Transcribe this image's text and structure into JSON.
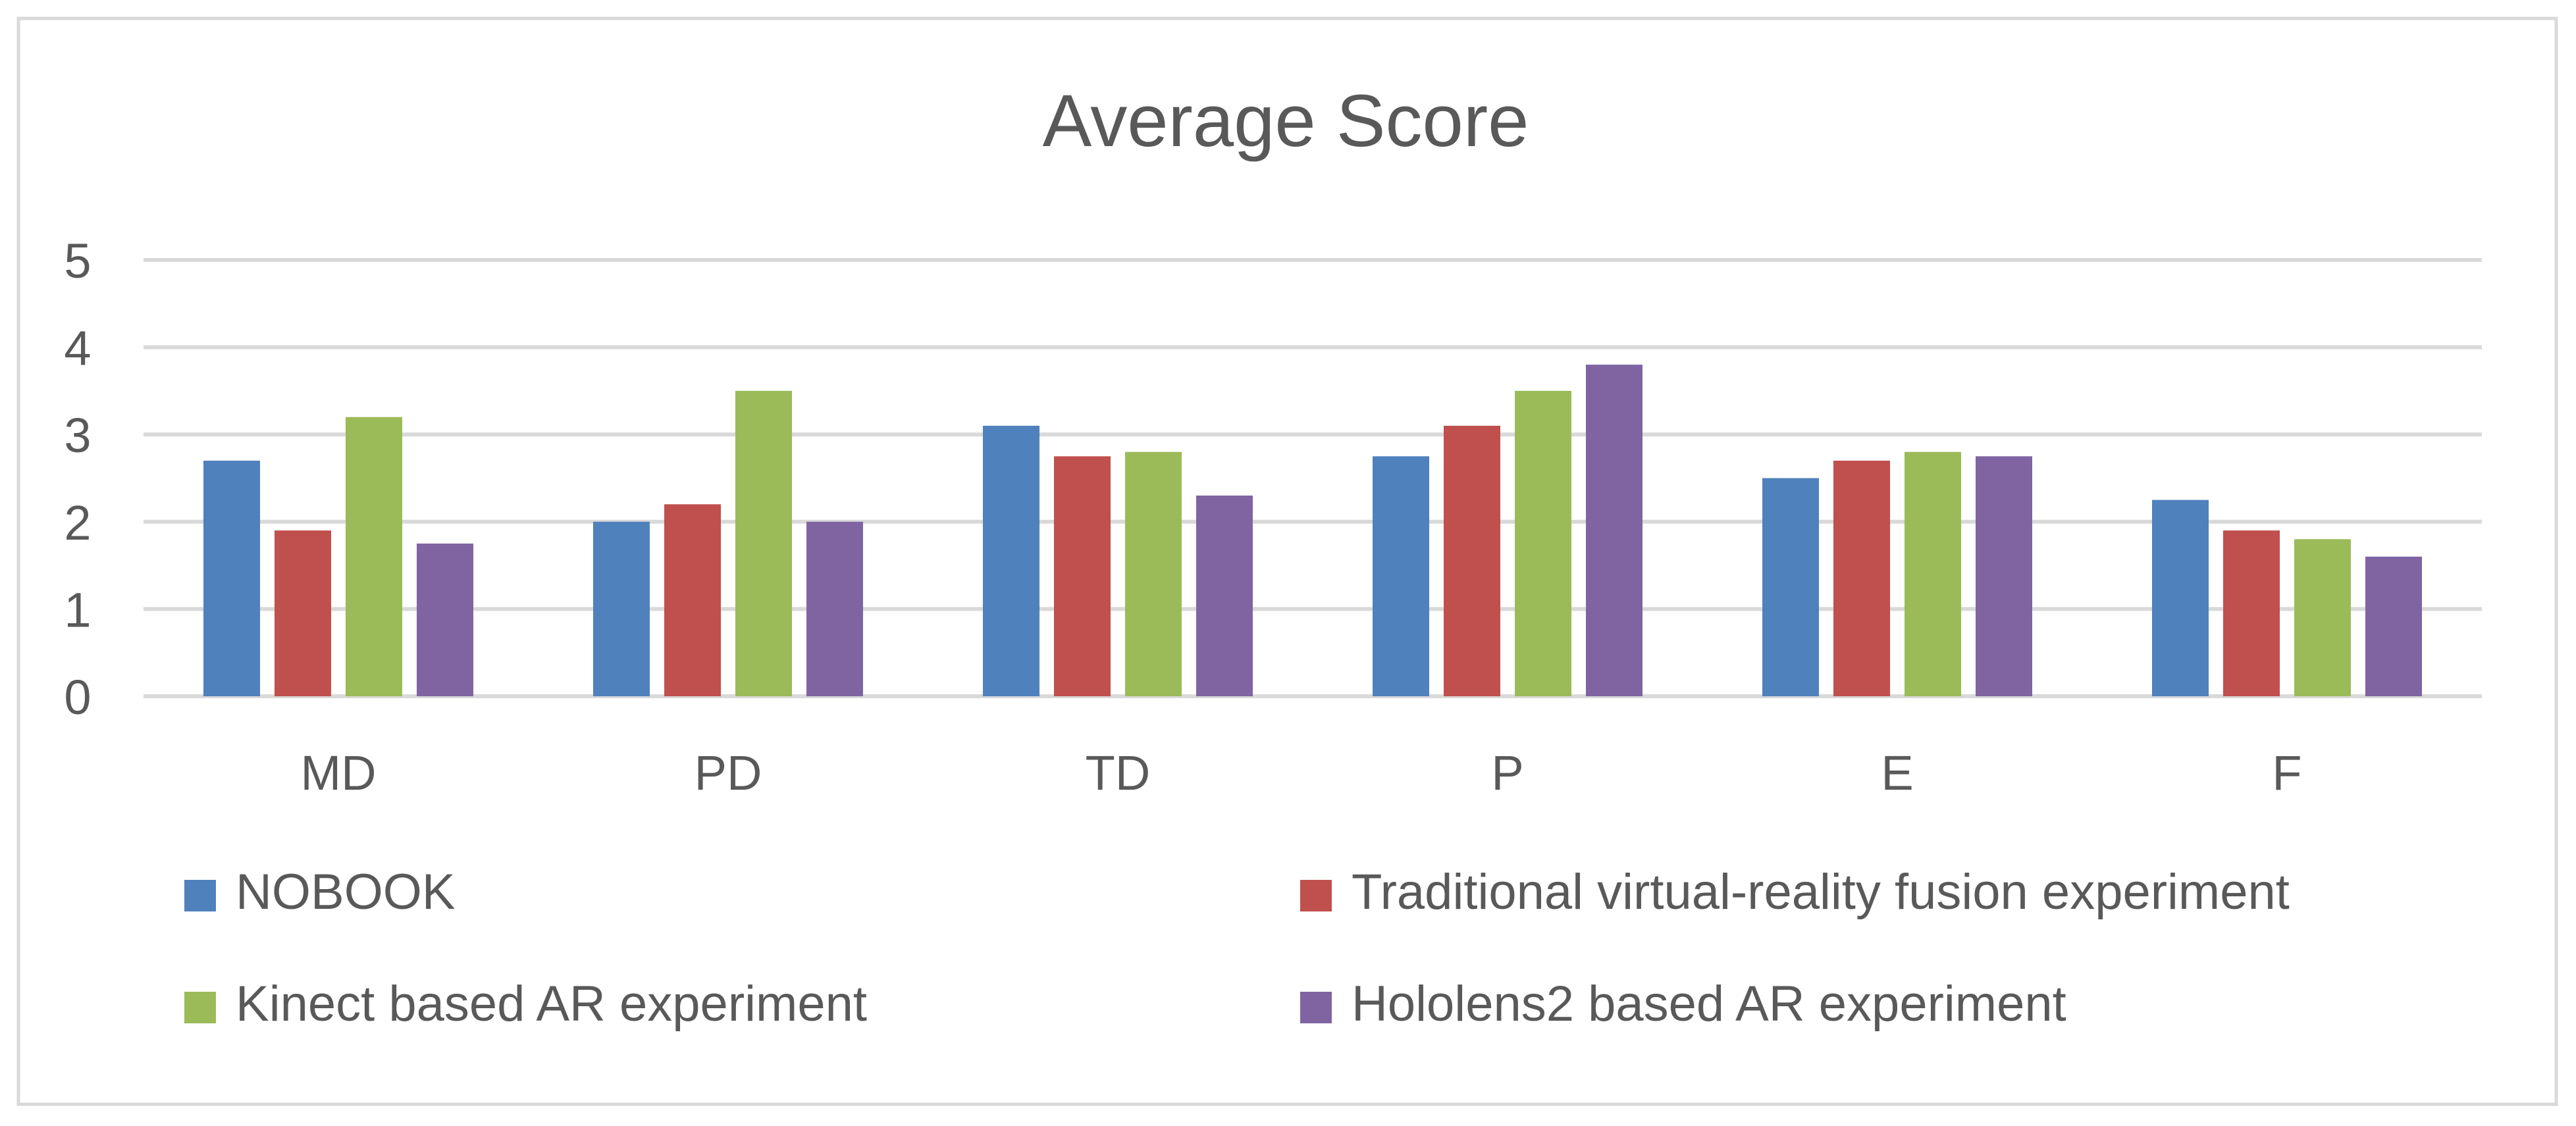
{
  "chart_data": {
    "type": "bar",
    "title": "Average Score",
    "xlabel": "",
    "ylabel": "",
    "ylim": [
      0,
      5
    ],
    "yticks": [
      0,
      1,
      2,
      3,
      4,
      5
    ],
    "grid": true,
    "legend_position": "bottom",
    "categories": [
      "MD",
      "PD",
      "TD",
      "P",
      "E",
      "F"
    ],
    "series": [
      {
        "name": "NOBOOK",
        "color": "#4F81BD",
        "values": [
          2.7,
          2.0,
          3.1,
          2.75,
          2.5,
          2.25
        ]
      },
      {
        "name": "Traditional virtual-reality fusion experiment",
        "color": "#C0504D",
        "values": [
          1.9,
          2.2,
          2.75,
          3.1,
          2.7,
          1.9
        ]
      },
      {
        "name": "Kinect based AR experiment",
        "color": "#9BBB59",
        "values": [
          3.2,
          3.5,
          2.8,
          3.5,
          2.8,
          1.8
        ]
      },
      {
        "name": "Hololens2 based AR experiment",
        "color": "#8064A2",
        "values": [
          1.75,
          2.0,
          2.3,
          3.8,
          2.75,
          1.6
        ]
      }
    ]
  }
}
